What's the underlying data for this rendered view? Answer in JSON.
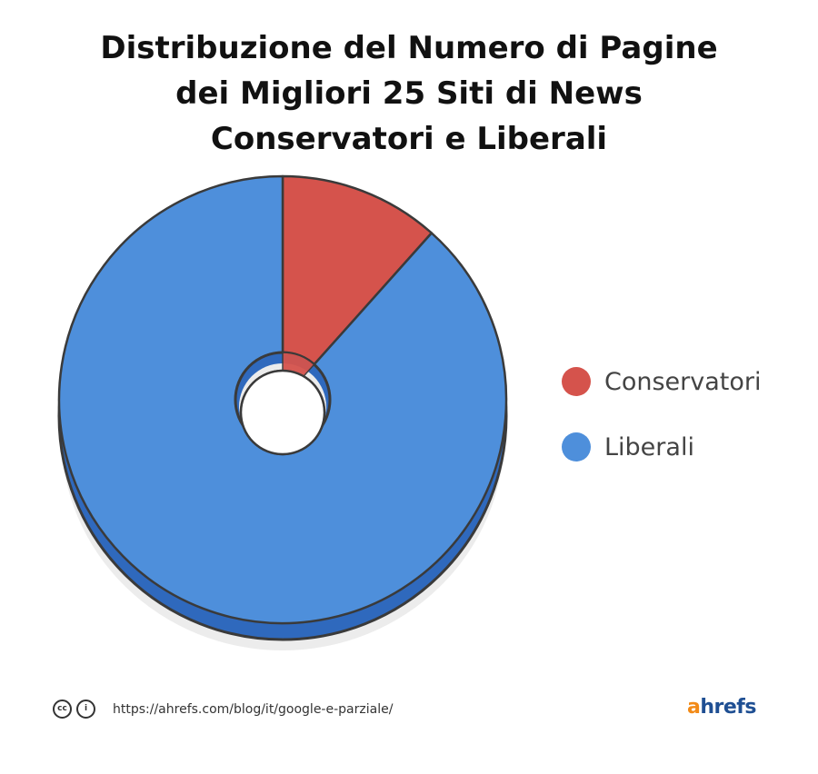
{
  "chart_data": {
    "type": "pie",
    "title_lines": [
      "Distribuzione del Numero di Pagine",
      "dei Migliori 25 Siti di News",
      "Conservatori e Liberali"
    ],
    "categories": [
      "Conservatori",
      "Liberali"
    ],
    "values": [
      11.6,
      88.4
    ],
    "colors": [
      "#d5534c",
      "#4e8fdb"
    ],
    "legend_position": "right"
  },
  "footer": {
    "cc_icon": "cc",
    "by_icon": "i",
    "url": "https://ahrefs.com/blog/it/google-e-parziale/"
  },
  "logo": {
    "first": "a",
    "rest": "hrefs",
    "color_first": "#f28a17",
    "color_rest": "#1f4f93"
  }
}
